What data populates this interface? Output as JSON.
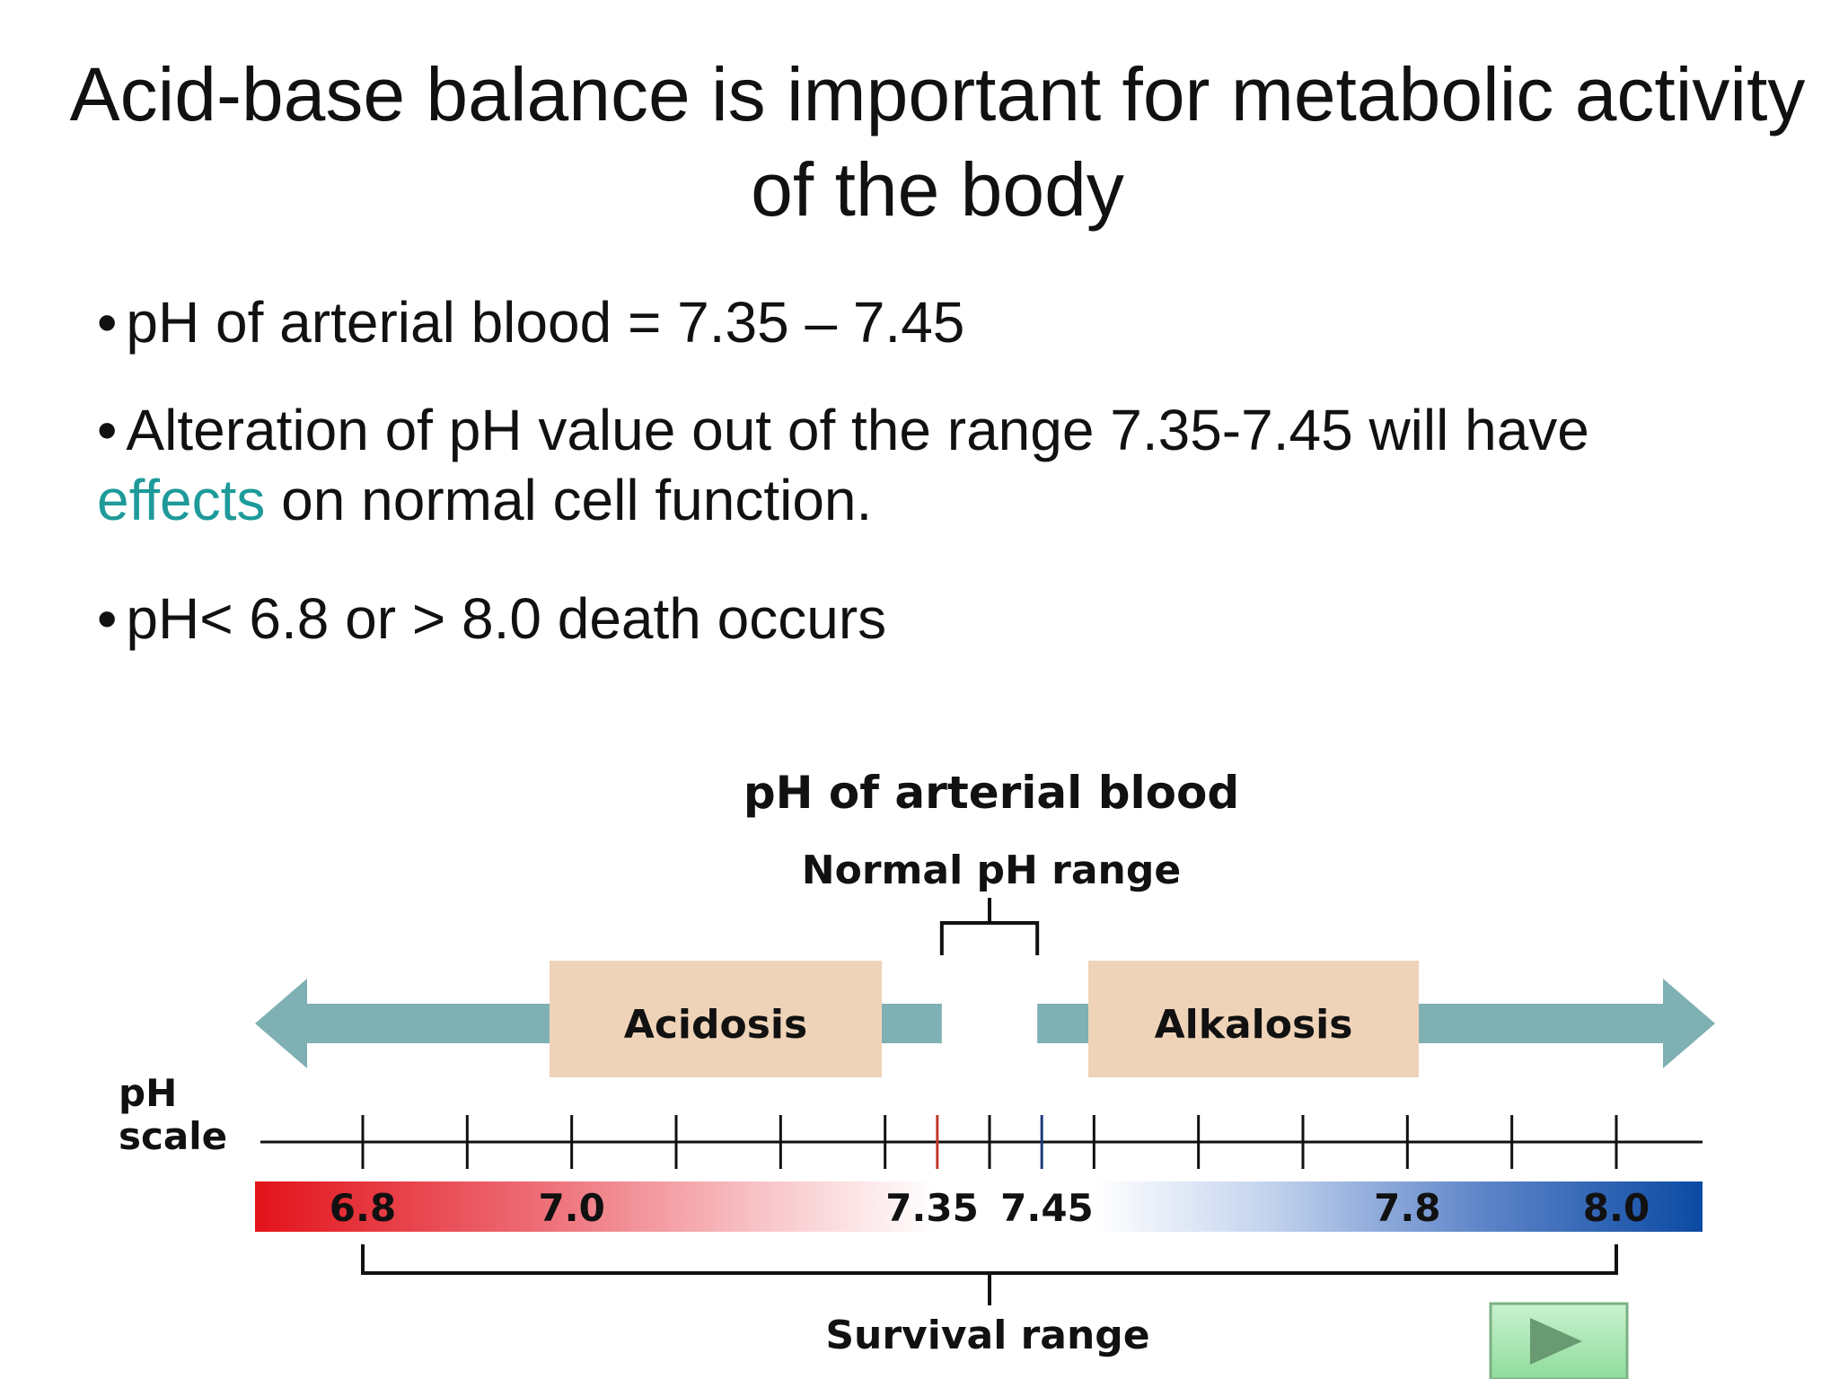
{
  "slide": {
    "title": "Acid-base balance is important for metabolic activity of the body",
    "bullets": {
      "b1": "pH of arterial blood = 7.35 – 7.45",
      "b2_pre": "Alteration of pH value out of the range 7.35-7.45 will have",
      "b2_highlight": "effects",
      "b2_post": " on normal cell function.",
      "b3": "pH< 6.8 or > 8.0 death occurs"
    },
    "bullet_glyph": "•"
  },
  "diagram": {
    "title": "pH of arterial blood",
    "normal_range_label": "Normal pH range",
    "acidosis_label": "Acidosis",
    "alkalosis_label": "Alkalosis",
    "scale_label_line1": "pH",
    "scale_label_line2": "scale",
    "survival_label": "Survival range",
    "scale_min": 6.8,
    "scale_max": 8.0,
    "normal_range": [
      7.35,
      7.45
    ],
    "survival_range": [
      6.8,
      8.0
    ],
    "ticks": [
      6.8,
      6.9,
      7.0,
      7.1,
      7.2,
      7.3,
      7.35,
      7.4,
      7.45,
      7.5,
      7.6,
      7.7,
      7.8,
      7.9,
      8.0
    ],
    "tick_labels": [
      {
        "value": 6.8,
        "text": "6.8"
      },
      {
        "value": 7.0,
        "text": "7.0"
      },
      {
        "value": 7.35,
        "text": "7.35"
      },
      {
        "value": 7.45,
        "text": "7.45"
      },
      {
        "value": 7.8,
        "text": "7.8"
      },
      {
        "value": 8.0,
        "text": "8.0"
      }
    ],
    "colors": {
      "arrow": "#7fb0b3",
      "label_box": "#efd3b8",
      "acid": "#e2121a",
      "base": "#0b4aa3",
      "tick_acid": "#c0392b",
      "tick_base": "#1a3a7a",
      "line": "#111111"
    }
  },
  "nav": {
    "next_icon": "play-triangle-icon"
  }
}
